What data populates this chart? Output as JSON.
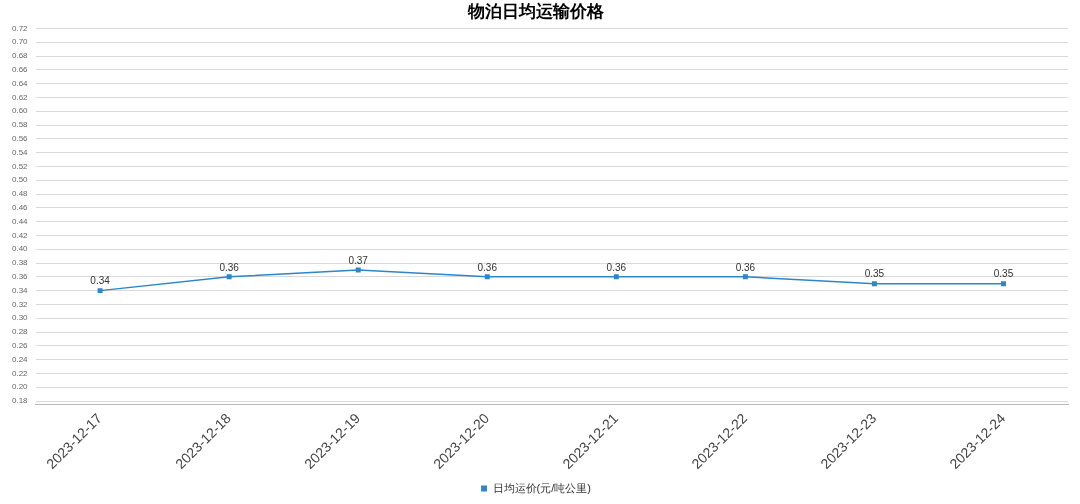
{
  "chart_data": {
    "type": "line",
    "title": "物泊日均运输价格",
    "categories": [
      "2023-12-17",
      "2023-12-18",
      "2023-12-19",
      "2023-12-20",
      "2023-12-21",
      "2023-12-22",
      "2023-12-23",
      "2023-12-24"
    ],
    "series": [
      {
        "name": "日均运价(元/吨公里)",
        "color": "#2e86c8",
        "values": [
          0.34,
          0.36,
          0.37,
          0.36,
          0.36,
          0.36,
          0.35,
          0.35
        ]
      }
    ],
    "ylim": [
      0.175,
      0.72
    ],
    "yticks": [
      0.18,
      {
        "value": 0.2,
        "label": "0.20"
      },
      0.22,
      0.24,
      0.26,
      0.28,
      {
        "value": 0.3,
        "label": "0.30"
      },
      0.32,
      0.34,
      0.36,
      0.38,
      {
        "value": 0.4,
        "label": "0.40"
      },
      0.42,
      0.44,
      0.46,
      0.48,
      {
        "value": 0.5,
        "label": "0.50"
      },
      0.52,
      0.54,
      0.56,
      0.58,
      {
        "value": 0.6,
        "label": "0.60"
      },
      0.62,
      0.64,
      0.66,
      0.68,
      {
        "value": 0.7,
        "label": "0.70"
      },
      0.72
    ],
    "grid": "y",
    "legend": "bottom",
    "marker": "square",
    "line_style": "solid",
    "data_labels": true
  }
}
